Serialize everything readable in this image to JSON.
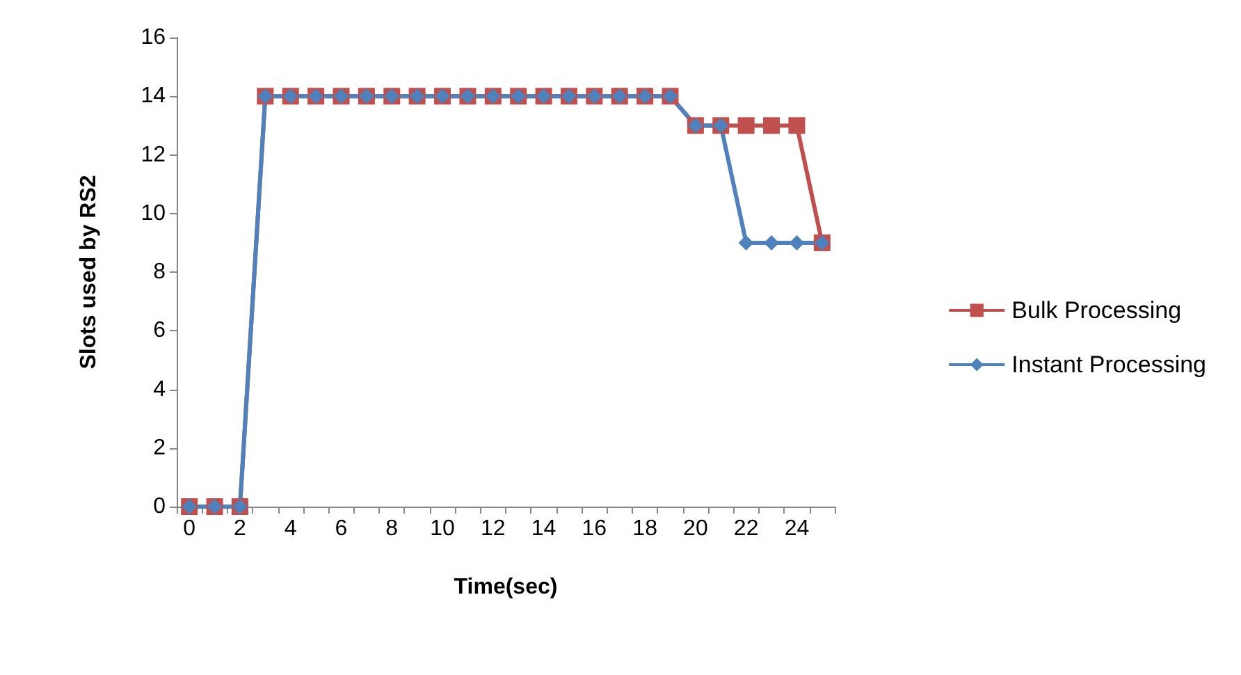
{
  "chart_data": {
    "type": "line",
    "xlabel": "Time(sec)",
    "ylabel": "Slots used by RS2",
    "categories": [
      "0",
      null,
      "2",
      null,
      "4",
      null,
      "6",
      null,
      "8",
      null,
      "10",
      null,
      "12",
      null,
      "14",
      null,
      "16",
      null,
      "18",
      null,
      "20",
      null,
      "22",
      null,
      "24",
      null
    ],
    "series": [
      {
        "name": "Bulk Processing",
        "color": "#c0504d",
        "marker": "square",
        "values": [
          0,
          0,
          0,
          14,
          14,
          14,
          14,
          14,
          14,
          14,
          14,
          14,
          14,
          14,
          14,
          14,
          14,
          14,
          14,
          14,
          13,
          13,
          13,
          13,
          13,
          9
        ]
      },
      {
        "name": "Instant Processing",
        "color": "#4f81bd",
        "marker": "diamond",
        "values": [
          0,
          0,
          0,
          14,
          14,
          14,
          14,
          14,
          14,
          14,
          14,
          14,
          14,
          14,
          14,
          14,
          14,
          14,
          14,
          14,
          13,
          13,
          9,
          9,
          9,
          9
        ]
      }
    ],
    "ylim": [
      0,
      16
    ],
    "yticks": [
      0,
      2,
      4,
      6,
      8,
      10,
      12,
      14,
      16
    ],
    "grid": false,
    "legend": "right"
  }
}
